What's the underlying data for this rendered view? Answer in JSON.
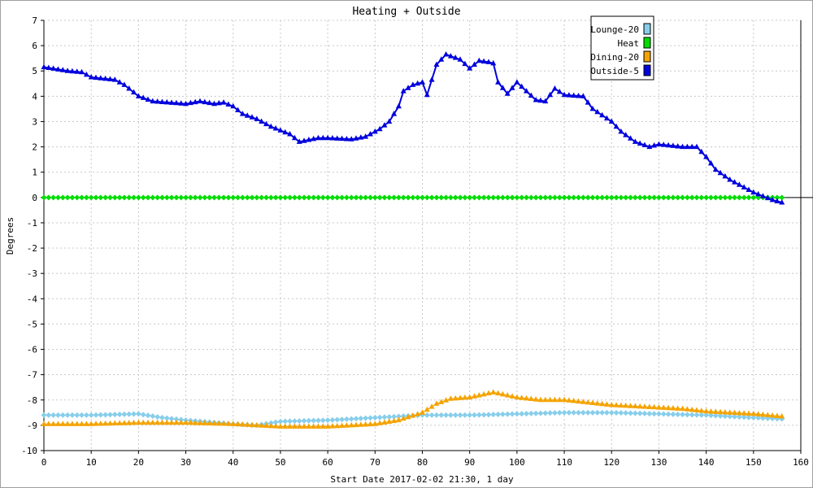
{
  "chart_data": {
    "type": "line",
    "title": "Heating + Outside",
    "xlabel": "Start Date 2017-02-02 21:30, 1 day",
    "ylabel": "Degrees",
    "xlim": [
      0,
      160
    ],
    "ylim": [
      -10,
      7
    ],
    "xticks": [
      0,
      10,
      20,
      30,
      40,
      50,
      60,
      70,
      80,
      90,
      100,
      110,
      120,
      130,
      140,
      150,
      160
    ],
    "yticks": [
      7,
      6,
      5,
      4,
      3,
      2,
      1,
      0,
      -1,
      -2,
      -3,
      -4,
      -5,
      -6,
      -7,
      -8,
      -9,
      -10
    ],
    "grid": true,
    "legend_position": "top-right",
    "series": [
      {
        "name": "Lounge-20",
        "color": "#87ceeb",
        "marker": "diamond",
        "points": [
          [
            0,
            -8.6
          ],
          [
            10,
            -8.6
          ],
          [
            20,
            -8.55
          ],
          [
            25,
            -8.7
          ],
          [
            30,
            -8.8
          ],
          [
            40,
            -8.95
          ],
          [
            45,
            -9.0
          ],
          [
            50,
            -8.85
          ],
          [
            60,
            -8.8
          ],
          [
            70,
            -8.7
          ],
          [
            80,
            -8.6
          ],
          [
            90,
            -8.6
          ],
          [
            100,
            -8.55
          ],
          [
            110,
            -8.5
          ],
          [
            120,
            -8.5
          ],
          [
            130,
            -8.55
          ],
          [
            140,
            -8.6
          ],
          [
            150,
            -8.7
          ],
          [
            156,
            -8.75
          ]
        ]
      },
      {
        "name": "Heat",
        "color": "#00dd00",
        "marker": "diamond",
        "points": [
          [
            0,
            0
          ],
          [
            156,
            0
          ]
        ]
      },
      {
        "name": "Dining-20",
        "color": "#f4a300",
        "marker": "triangle",
        "points": [
          [
            0,
            -8.95
          ],
          [
            10,
            -8.95
          ],
          [
            20,
            -8.9
          ],
          [
            30,
            -8.9
          ],
          [
            40,
            -8.95
          ],
          [
            50,
            -9.05
          ],
          [
            55,
            -9.05
          ],
          [
            60,
            -9.05
          ],
          [
            65,
            -9.0
          ],
          [
            70,
            -8.95
          ],
          [
            75,
            -8.8
          ],
          [
            80,
            -8.5
          ],
          [
            83,
            -8.15
          ],
          [
            86,
            -7.95
          ],
          [
            90,
            -7.9
          ],
          [
            95,
            -7.7
          ],
          [
            100,
            -7.9
          ],
          [
            105,
            -8.0
          ],
          [
            110,
            -8.0
          ],
          [
            115,
            -8.1
          ],
          [
            120,
            -8.2
          ],
          [
            125,
            -8.25
          ],
          [
            130,
            -8.3
          ],
          [
            135,
            -8.35
          ],
          [
            140,
            -8.45
          ],
          [
            145,
            -8.5
          ],
          [
            150,
            -8.55
          ],
          [
            156,
            -8.65
          ]
        ]
      },
      {
        "name": "Outside-5",
        "color": "#0000dd",
        "marker": "triangle",
        "points": [
          [
            0,
            5.15
          ],
          [
            5,
            5.0
          ],
          [
            8,
            4.95
          ],
          [
            10,
            4.75
          ],
          [
            15,
            4.65
          ],
          [
            17,
            4.45
          ],
          [
            20,
            4.0
          ],
          [
            23,
            3.8
          ],
          [
            30,
            3.7
          ],
          [
            33,
            3.8
          ],
          [
            36,
            3.7
          ],
          [
            38,
            3.75
          ],
          [
            40,
            3.6
          ],
          [
            42,
            3.3
          ],
          [
            45,
            3.1
          ],
          [
            48,
            2.8
          ],
          [
            52,
            2.5
          ],
          [
            54,
            2.2
          ],
          [
            58,
            2.35
          ],
          [
            60,
            2.35
          ],
          [
            65,
            2.3
          ],
          [
            68,
            2.4
          ],
          [
            71,
            2.7
          ],
          [
            73,
            3.0
          ],
          [
            75,
            3.6
          ],
          [
            76,
            4.2
          ],
          [
            78,
            4.45
          ],
          [
            80,
            4.55
          ],
          [
            81,
            4.05
          ],
          [
            83,
            5.25
          ],
          [
            85,
            5.65
          ],
          [
            88,
            5.45
          ],
          [
            90,
            5.1
          ],
          [
            92,
            5.4
          ],
          [
            94,
            5.35
          ],
          [
            95,
            5.3
          ],
          [
            96,
            4.55
          ],
          [
            98,
            4.1
          ],
          [
            100,
            4.55
          ],
          [
            102,
            4.2
          ],
          [
            104,
            3.85
          ],
          [
            106,
            3.8
          ],
          [
            108,
            4.3
          ],
          [
            110,
            4.05
          ],
          [
            114,
            4.0
          ],
          [
            116,
            3.5
          ],
          [
            118,
            3.25
          ],
          [
            120,
            3.0
          ],
          [
            122,
            2.6
          ],
          [
            125,
            2.2
          ],
          [
            128,
            2.0
          ],
          [
            130,
            2.1
          ],
          [
            135,
            2.0
          ],
          [
            138,
            2.0
          ],
          [
            140,
            1.6
          ],
          [
            142,
            1.1
          ],
          [
            145,
            0.7
          ],
          [
            148,
            0.4
          ],
          [
            150,
            0.2
          ],
          [
            152,
            0.05
          ],
          [
            154,
            -0.1
          ],
          [
            156,
            -0.2
          ]
        ]
      }
    ]
  }
}
